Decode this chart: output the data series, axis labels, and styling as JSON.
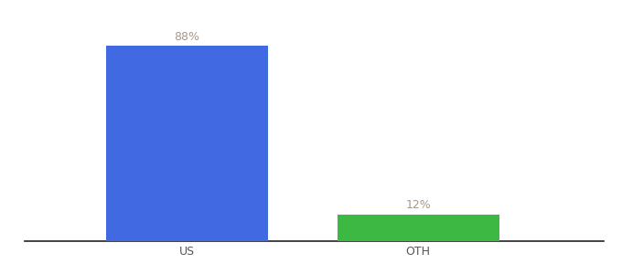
{
  "categories": [
    "US",
    "OTH"
  ],
  "values": [
    88,
    12
  ],
  "bar_colors": [
    "#4169e1",
    "#3cb843"
  ],
  "label_color": "#a89888",
  "label_fontsize": 9,
  "xlabel_fontsize": 9,
  "xlabel_color": "#555555",
  "background_color": "#ffffff",
  "ylim": [
    0,
    100
  ],
  "bar_width": 0.28,
  "x_positions": [
    0.28,
    0.68
  ]
}
